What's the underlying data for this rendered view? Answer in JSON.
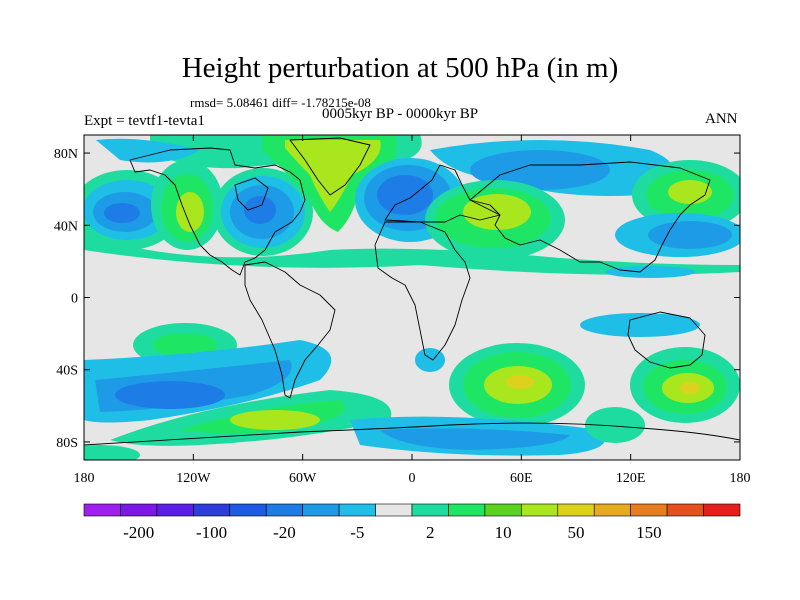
{
  "figure": {
    "title": "Height perturbation at 500 hPa (in m)",
    "stats": "rmsd= 5.08461 diff= -1.78215e-08",
    "left_label": "Expt = tevtf1-tevta1",
    "center_label": "0005kyr BP - 0000kyr BP",
    "right_label": "ANN"
  },
  "map": {
    "lon_range": [
      -180,
      180
    ],
    "lat_range": [
      -90,
      90
    ],
    "x_ticks": [
      {
        "lon": -180,
        "label": "180"
      },
      {
        "lon": -120,
        "label": "120W"
      },
      {
        "lon": -60,
        "label": "60W"
      },
      {
        "lon": 0,
        "label": "0"
      },
      {
        "lon": 60,
        "label": "60E"
      },
      {
        "lon": 120,
        "label": "120E"
      },
      {
        "lon": 180,
        "label": "180"
      }
    ],
    "y_ticks": [
      {
        "lat": 80,
        "label": "80N"
      },
      {
        "lat": 40,
        "label": "40N"
      },
      {
        "lat": 0,
        "label": "0"
      },
      {
        "lat": -40,
        "label": "40S"
      },
      {
        "lat": -80,
        "label": "80S"
      }
    ],
    "background_color": "#e6e6e6",
    "centers": [
      {
        "name": "north-pacific-low",
        "lon": -160,
        "lat": 40,
        "value": -20
      },
      {
        "name": "north-america-ridge",
        "lon": -110,
        "lat": 45,
        "value": 10
      },
      {
        "name": "hudson-bay-low",
        "lon": -80,
        "lat": 47,
        "value": -20
      },
      {
        "name": "greenland-high",
        "lon": -35,
        "lat": 72,
        "value": 10
      },
      {
        "name": "north-atlantic-low",
        "lon": -5,
        "lat": 55,
        "value": -20
      },
      {
        "name": "eurasia-ridge",
        "lon": 50,
        "lat": 45,
        "value": 10
      },
      {
        "name": "siberia-low",
        "lon": 100,
        "lat": 68,
        "value": -5
      },
      {
        "name": "north-pacific-ridge",
        "lon": 160,
        "lat": 55,
        "value": 10
      },
      {
        "name": "south-pacific-ridge",
        "lon": -130,
        "lat": -25,
        "value": 10
      },
      {
        "name": "southern-ocean-low",
        "lon": -130,
        "lat": -55,
        "value": -20
      },
      {
        "name": "south-atlantic-ridge",
        "lon": -60,
        "lat": -65,
        "value": 10
      },
      {
        "name": "indian-ocean-high",
        "lon": 60,
        "lat": -50,
        "value": 50
      },
      {
        "name": "australia-high",
        "lon": 150,
        "lat": -55,
        "value": 50
      }
    ]
  },
  "colorbar": {
    "colors": [
      "#9f1ef0",
      "#7b18e6",
      "#5a1ee6",
      "#2f3cdc",
      "#1e5ae6",
      "#1e7ce6",
      "#1e9be6",
      "#1ebee6",
      "#e6e6e6",
      "#1edca0",
      "#1ee664",
      "#5ad21e",
      "#aae61e",
      "#dcd21e",
      "#e6aa1e",
      "#e67d1e",
      "#e6501e",
      "#e61e1e"
    ],
    "labels": [
      "-200",
      "-100",
      "-20",
      "-5",
      "2",
      "10",
      "50",
      "150"
    ]
  }
}
